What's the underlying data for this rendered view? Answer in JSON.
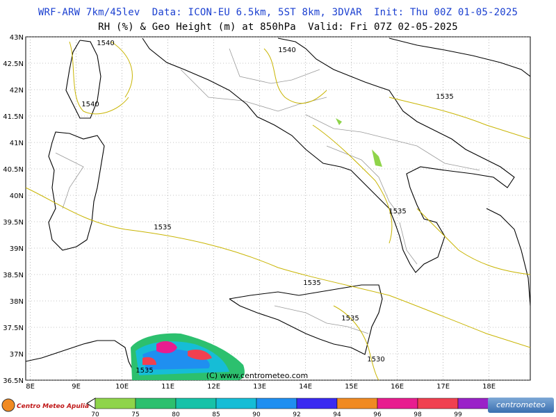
{
  "header": {
    "line1": "WRF-ARW 7km/45lev  Data: ICON-EU 6.5km, 5ST 8km, 3DVAR  Init: Thu 00Z 01-05-2025",
    "line2": "RH (%) & Geo Height (m) at 850hPa  Valid: Fri 07Z 02-05-2025",
    "line1_color": "#1a3fd0"
  },
  "map": {
    "lat_labels": [
      "43N",
      "42.5N",
      "42N",
      "41.5N",
      "41N",
      "40.5N",
      "40N",
      "39.5N",
      "39N",
      "38.5N",
      "38N",
      "37.5N",
      "37N",
      "36.5N"
    ],
    "lon_labels": [
      "8E",
      "9E",
      "10E",
      "11E",
      "12E",
      "13E",
      "14E",
      "15E",
      "16E",
      "17E",
      "18E"
    ],
    "lon_range": [
      7.9,
      18.9
    ],
    "lat_range": [
      36.5,
      43.0
    ],
    "contour_labels": [
      "1540",
      "1540",
      "1540",
      "1535",
      "1535",
      "1535",
      "1535",
      "1535",
      "1530",
      "1535"
    ],
    "copyright": "(C) www.centrometeo.com",
    "colors": {
      "contour": "#c8b400",
      "coast": "#000000",
      "borders": "#999999",
      "grid": "#888888"
    }
  },
  "colorbar": {
    "levels": [
      "70",
      "75",
      "80",
      "85",
      "90",
      "92",
      "94",
      "96",
      "98",
      "99"
    ],
    "colors": [
      "#8fd44a",
      "#2cc06e",
      "#17c2a8",
      "#16bdd6",
      "#1f8ff0",
      "#3a2af0",
      "#f08a22",
      "#e81d8f",
      "#f04050",
      "#9a22c8",
      "#a0a0a0"
    ]
  },
  "logos": {
    "left_text": "Centro Meteo Apulia",
    "right_text": "centrometeo"
  }
}
